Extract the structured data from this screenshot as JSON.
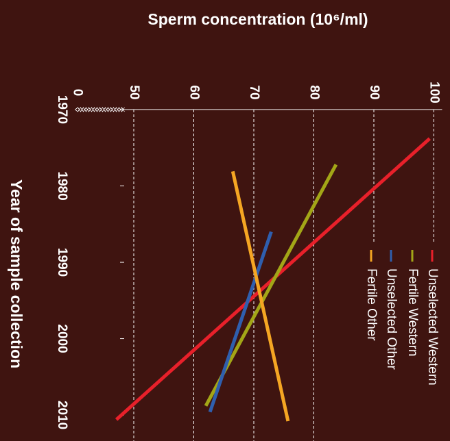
{
  "chart_data": {
    "type": "line",
    "title": "Sperm concentration (10⁶/ml)",
    "xlabel": "Year of sample collection",
    "xlim": [
      1970,
      2013.4
    ],
    "xticks": [
      1970,
      1980,
      1990,
      2000,
      2010
    ],
    "ylim": [
      40,
      100
    ],
    "yticks": [
      0,
      50,
      60,
      70,
      80,
      90,
      100
    ],
    "axis_break": true,
    "grid": true,
    "legend": "right",
    "series": [
      {
        "name": "Unselected Western",
        "color": "#e8202a",
        "x": [
          1973.8,
          2010.6
        ],
        "values": [
          99.3,
          47.1
        ]
      },
      {
        "name": "Fertile Western",
        "color": "#a3a617",
        "x": [
          1977.2,
          2008.8
        ],
        "values": [
          83.7,
          62.0
        ]
      },
      {
        "name": "Unselected Other",
        "color": "#2f5fae",
        "x": [
          1986.0,
          2009.6
        ],
        "values": [
          72.9,
          62.7
        ]
      },
      {
        "name": "Fertile Other",
        "color": "#f5a623",
        "x": [
          1978.1,
          2010.8
        ],
        "values": [
          66.5,
          75.7
        ]
      }
    ]
  }
}
